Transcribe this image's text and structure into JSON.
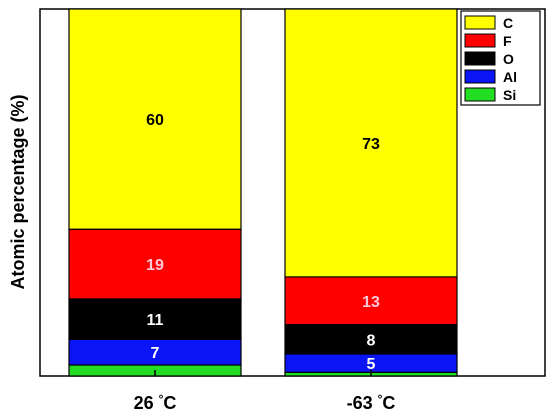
{
  "chart_data": {
    "type": "bar",
    "stacked": true,
    "ylabel": "Atomic percentage (%)",
    "xlabel": "",
    "ylim": [
      0,
      100
    ],
    "categories": [
      {
        "value": "26",
        "unit": "°C"
      },
      {
        "value": "-63",
        "unit": "°C"
      }
    ],
    "series": [
      {
        "name": "Si",
        "color": "#22dd22",
        "values": [
          3,
          1
        ],
        "labels": [
          "",
          ""
        ],
        "label_color": "#ffffff"
      },
      {
        "name": "Al",
        "color": "#0a14f5",
        "values": [
          7,
          5
        ],
        "labels": [
          "7",
          "5"
        ],
        "label_color": "#ffffff"
      },
      {
        "name": "O",
        "color": "#000000",
        "values": [
          11,
          8
        ],
        "labels": [
          "11",
          "8"
        ],
        "label_color": "#ffffff"
      },
      {
        "name": "F",
        "color": "#ff0000",
        "values": [
          19,
          13
        ],
        "labels": [
          "19",
          "13"
        ],
        "label_color": "#ffc8d8"
      },
      {
        "name": "C",
        "color": "#ffff00",
        "values": [
          60,
          73
        ],
        "labels": [
          "60",
          "73"
        ],
        "label_color": "#000000"
      }
    ],
    "legend": {
      "position": "top-right",
      "order": [
        "C",
        "F",
        "O",
        "Al",
        "Si"
      ]
    },
    "grid": false
  }
}
